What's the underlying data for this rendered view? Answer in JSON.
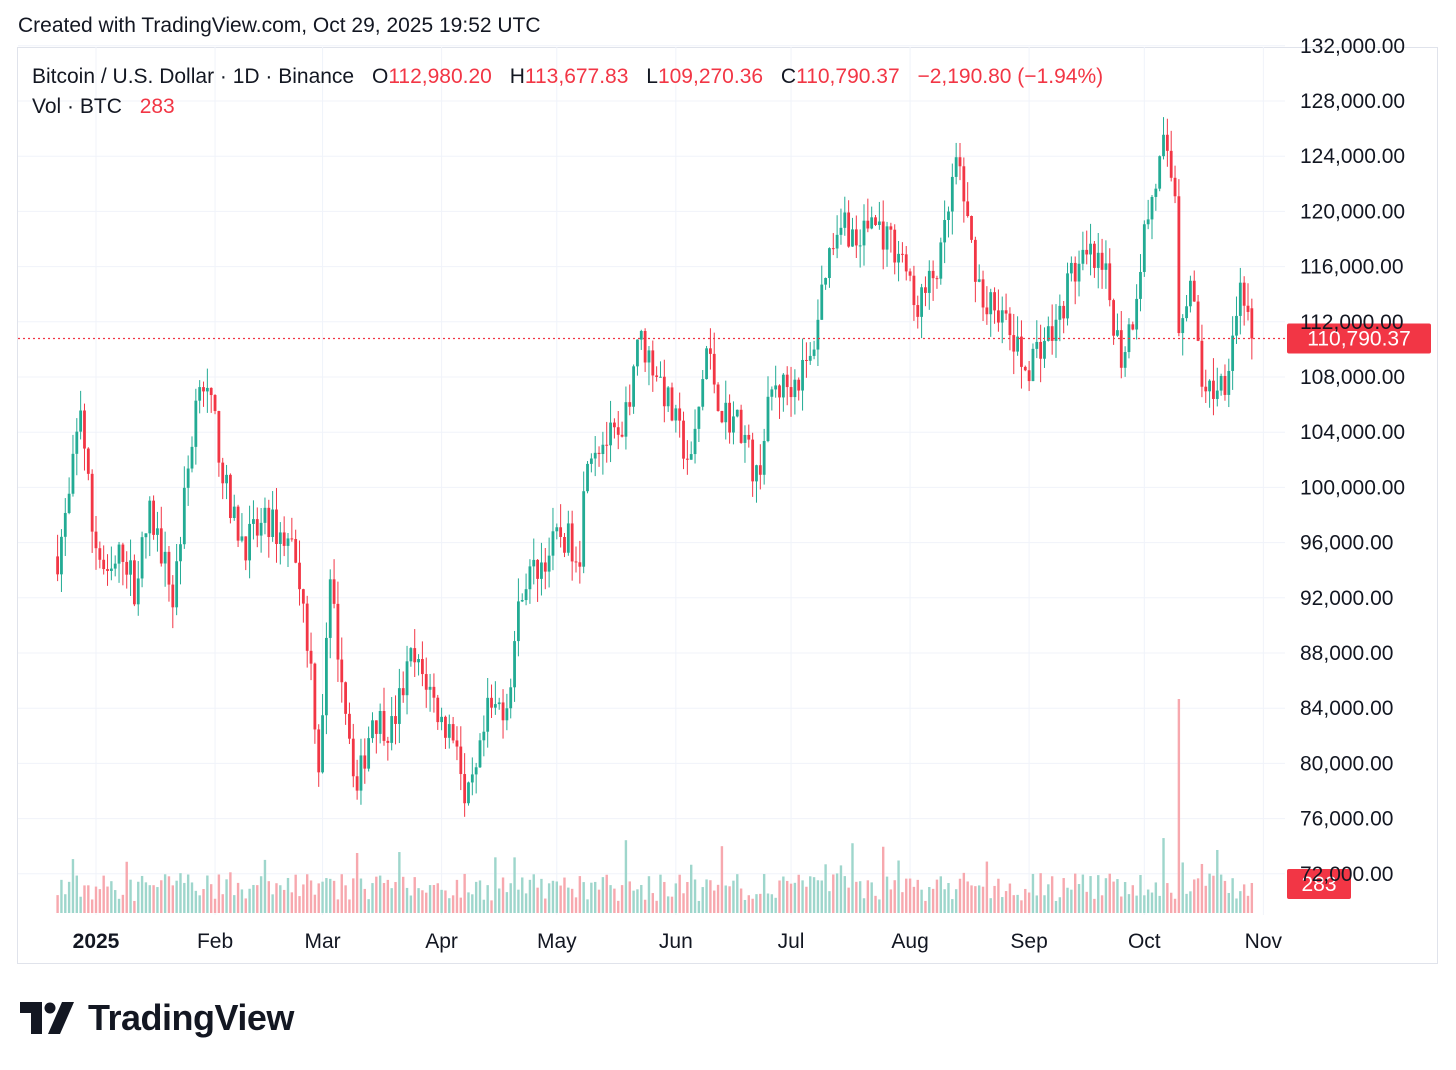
{
  "caption": "Created with TradingView.com, Oct 29, 2025 19:52 UTC",
  "legend": {
    "symbol": "Bitcoin / U.S. Dollar · 1D · Binance",
    "open_label": "O",
    "open": "112,980.20",
    "high_label": "H",
    "high": "113,677.83",
    "low_label": "L",
    "low": "109,270.36",
    "close_label": "C",
    "close": "110,790.37",
    "change": "−2,190.80 (−1.94%)",
    "vol_label": "Vol · BTC",
    "vol_value": "283"
  },
  "brand": {
    "name": "TradingView",
    "icon": "tradingview-logo-icon"
  },
  "colors": {
    "up": "#22ab94",
    "down": "#f23645",
    "grid": "#f0f3fa",
    "text": "#131722"
  },
  "chart_data": {
    "type": "candlestick",
    "title": "Bitcoin / U.S. Dollar · 1D · Binance",
    "ylim": [
      68000,
      132000
    ],
    "y_ticks": [
      {
        "value": 132000,
        "label": "132,000.00"
      },
      {
        "value": 128000,
        "label": "128,000.00"
      },
      {
        "value": 124000,
        "label": "124,000.00"
      },
      {
        "value": 120000,
        "label": "120,000.00"
      },
      {
        "value": 116000,
        "label": "116,000.00"
      },
      {
        "value": 112000,
        "label": "112,000.00"
      },
      {
        "value": 108000,
        "label": "108,000.00"
      },
      {
        "value": 104000,
        "label": "104,000.00"
      },
      {
        "value": 100000,
        "label": "100,000.00"
      },
      {
        "value": 96000,
        "label": "96,000.00"
      },
      {
        "value": 92000,
        "label": "92,000.00"
      },
      {
        "value": 88000,
        "label": "88,000.00"
      },
      {
        "value": 84000,
        "label": "84,000.00"
      },
      {
        "value": 80000,
        "label": "80,000.00"
      },
      {
        "value": 76000,
        "label": "76,000.00"
      },
      {
        "value": 72000,
        "label": "72,000.00"
      }
    ],
    "x_ticks": [
      {
        "date": "2025-01-01",
        "label": "2025",
        "bold": true
      },
      {
        "date": "2025-02-01",
        "label": "Feb"
      },
      {
        "date": "2025-03-01",
        "label": "Mar"
      },
      {
        "date": "2025-04-01",
        "label": "Apr"
      },
      {
        "date": "2025-05-01",
        "label": "May"
      },
      {
        "date": "2025-06-01",
        "label": "Jun"
      },
      {
        "date": "2025-07-01",
        "label": "Jul"
      },
      {
        "date": "2025-08-01",
        "label": "Aug"
      },
      {
        "date": "2025-09-01",
        "label": "Sep"
      },
      {
        "date": "2025-10-01",
        "label": "Oct"
      },
      {
        "date": "2025-11-01",
        "label": "Nov"
      }
    ],
    "first_date": "2024-12-22",
    "last_price": {
      "value": 110790.37,
      "label": "110,790.37"
    },
    "last_volume": {
      "value": 283,
      "label": "283"
    },
    "close_path": [
      {
        "date": "2024-12-22",
        "close": 95000
      },
      {
        "date": "2024-12-25",
        "close": 99000
      },
      {
        "date": "2024-12-28",
        "close": 106000
      },
      {
        "date": "2024-12-31",
        "close": 97000
      },
      {
        "date": "2025-01-04",
        "close": 93000
      },
      {
        "date": "2025-01-08",
        "close": 95500
      },
      {
        "date": "2025-01-11",
        "close": 92800
      },
      {
        "date": "2025-01-15",
        "close": 98000
      },
      {
        "date": "2025-01-18",
        "close": 95500
      },
      {
        "date": "2025-01-21",
        "close": 92000
      },
      {
        "date": "2025-01-24",
        "close": 99000
      },
      {
        "date": "2025-01-28",
        "close": 108500
      },
      {
        "date": "2025-02-01",
        "close": 104500
      },
      {
        "date": "2025-02-05",
        "close": 98000
      },
      {
        "date": "2025-02-09",
        "close": 96000
      },
      {
        "date": "2025-02-15",
        "close": 97500
      },
      {
        "date": "2025-02-22",
        "close": 95500
      },
      {
        "date": "2025-02-26",
        "close": 87000
      },
      {
        "date": "2025-02-28",
        "close": 80000
      },
      {
        "date": "2025-03-03",
        "close": 92500
      },
      {
        "date": "2025-03-06",
        "close": 86500
      },
      {
        "date": "2025-03-10",
        "close": 78000
      },
      {
        "date": "2025-03-14",
        "close": 83500
      },
      {
        "date": "2025-03-19",
        "close": 82500
      },
      {
        "date": "2025-03-24",
        "close": 87500
      },
      {
        "date": "2025-03-28",
        "close": 86000
      },
      {
        "date": "2025-04-01",
        "close": 83000
      },
      {
        "date": "2025-04-05",
        "close": 82000
      },
      {
        "date": "2025-04-07",
        "close": 76500
      },
      {
        "date": "2025-04-10",
        "close": 79000
      },
      {
        "date": "2025-04-13",
        "close": 83500
      },
      {
        "date": "2025-04-18",
        "close": 84500
      },
      {
        "date": "2025-04-22",
        "close": 93000
      },
      {
        "date": "2025-04-27",
        "close": 94500
      },
      {
        "date": "2025-05-02",
        "close": 96500
      },
      {
        "date": "2025-05-07",
        "close": 95500
      },
      {
        "date": "2025-05-09",
        "close": 103000
      },
      {
        "date": "2025-05-15",
        "close": 103500
      },
      {
        "date": "2025-05-18",
        "close": 103000
      },
      {
        "date": "2025-05-22",
        "close": 111000
      },
      {
        "date": "2025-05-27",
        "close": 108500
      },
      {
        "date": "2025-06-01",
        "close": 104500
      },
      {
        "date": "2025-06-05",
        "close": 101500
      },
      {
        "date": "2025-06-09",
        "close": 110000
      },
      {
        "date": "2025-06-13",
        "close": 105500
      },
      {
        "date": "2025-06-18",
        "close": 104500
      },
      {
        "date": "2025-06-22",
        "close": 100500
      },
      {
        "date": "2025-06-26",
        "close": 107000
      },
      {
        "date": "2025-07-01",
        "close": 107500
      },
      {
        "date": "2025-07-06",
        "close": 109000
      },
      {
        "date": "2025-07-10",
        "close": 116000
      },
      {
        "date": "2025-07-14",
        "close": 120000
      },
      {
        "date": "2025-07-18",
        "close": 117500
      },
      {
        "date": "2025-07-22",
        "close": 119500
      },
      {
        "date": "2025-07-26",
        "close": 118000
      },
      {
        "date": "2025-07-30",
        "close": 117000
      },
      {
        "date": "2025-08-02",
        "close": 113000
      },
      {
        "date": "2025-08-05",
        "close": 114000
      },
      {
        "date": "2025-08-09",
        "close": 116500
      },
      {
        "date": "2025-08-13",
        "close": 123500
      },
      {
        "date": "2025-08-17",
        "close": 117500
      },
      {
        "date": "2025-08-20",
        "close": 113500
      },
      {
        "date": "2025-08-24",
        "close": 113000
      },
      {
        "date": "2025-08-27",
        "close": 111000
      },
      {
        "date": "2025-08-31",
        "close": 108500
      },
      {
        "date": "2025-09-04",
        "close": 110500
      },
      {
        "date": "2025-09-08",
        "close": 111500
      },
      {
        "date": "2025-09-12",
        "close": 115500
      },
      {
        "date": "2025-09-17",
        "close": 116500
      },
      {
        "date": "2025-09-21",
        "close": 115000
      },
      {
        "date": "2025-09-25",
        "close": 109500
      },
      {
        "date": "2025-09-28",
        "close": 112500
      },
      {
        "date": "2025-10-01",
        "close": 118500
      },
      {
        "date": "2025-10-06",
        "close": 124500
      },
      {
        "date": "2025-10-09",
        "close": 121500
      },
      {
        "date": "2025-10-10",
        "close": 112000
      },
      {
        "date": "2025-10-13",
        "close": 115000
      },
      {
        "date": "2025-10-16",
        "close": 108000
      },
      {
        "date": "2025-10-18",
        "close": 107000
      },
      {
        "date": "2025-10-22",
        "close": 108000
      },
      {
        "date": "2025-10-26",
        "close": 114500
      },
      {
        "date": "2025-10-27",
        "close": 114000
      },
      {
        "date": "2025-10-28",
        "close": 112980.2
      },
      {
        "date": "2025-10-29",
        "close": 110790.37
      }
    ]
  }
}
